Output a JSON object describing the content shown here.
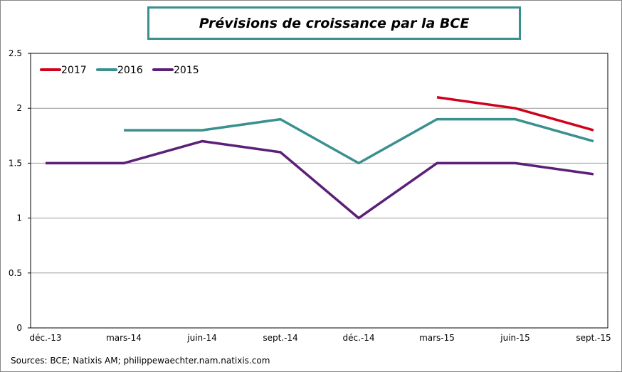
{
  "chart_data": {
    "type": "line",
    "title": "Prévisions de croissance par la BCE",
    "categories": [
      "déc.-13",
      "mars-14",
      "juin-14",
      "sept.-14",
      "déc.-14",
      "mars-15",
      "juin-15",
      "sept.-15"
    ],
    "ylim": [
      0,
      2.5
    ],
    "yticks": [
      "0",
      "0.5",
      "1",
      "1.5",
      "2",
      "2.5"
    ],
    "grid": true,
    "legend_placement": "top-left",
    "series": [
      {
        "name": "2017",
        "color": "#d0021b",
        "values": [
          null,
          null,
          null,
          null,
          null,
          2.1,
          2.0,
          1.8
        ]
      },
      {
        "name": "2016",
        "color": "#3a8f8f",
        "values": [
          null,
          1.8,
          1.8,
          1.9,
          1.5,
          1.9,
          1.9,
          1.7
        ]
      },
      {
        "name": "2015",
        "color": "#5b1f78",
        "values": [
          1.5,
          1.5,
          1.7,
          1.6,
          1.0,
          1.5,
          1.5,
          1.4
        ]
      }
    ]
  },
  "source": "Sources: BCE; Natixis AM;  philippewaechter.nam.natixis.com"
}
